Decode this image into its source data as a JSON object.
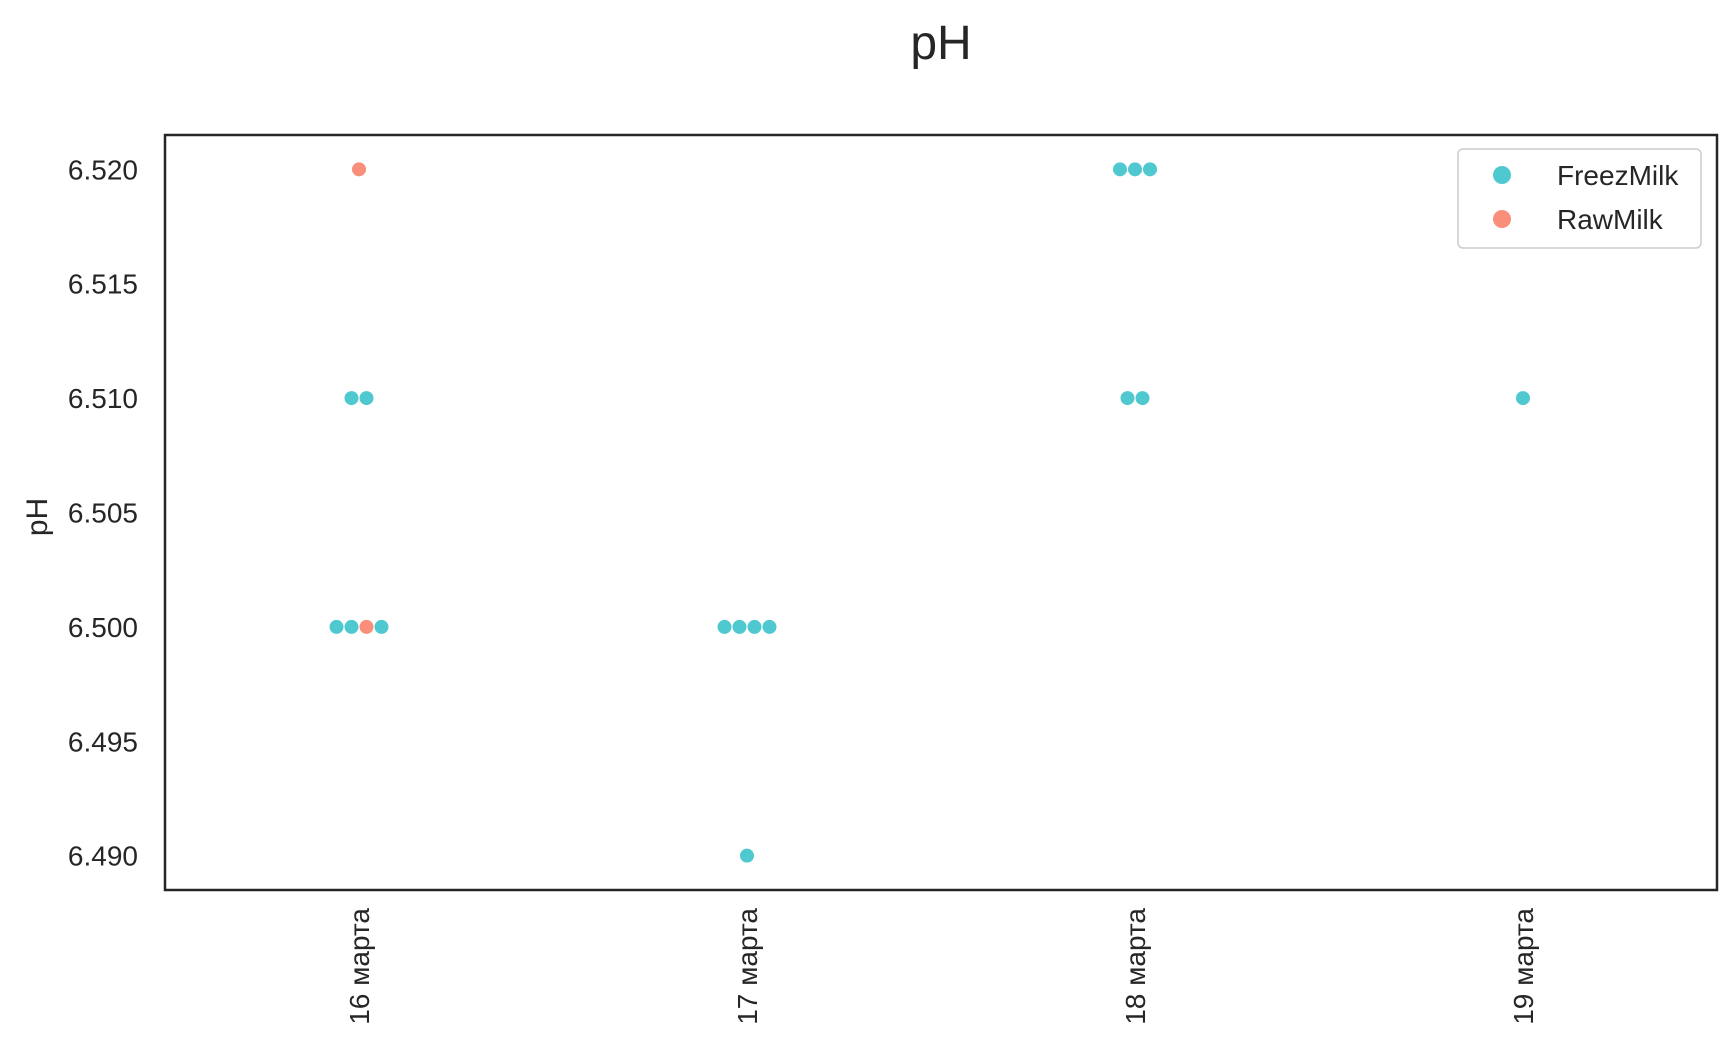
{
  "chart_data": {
    "type": "scatter",
    "title": "pH",
    "xlabel": "",
    "ylabel": "pH",
    "categories": [
      "16 марта",
      "17 марта",
      "18 марта",
      "19 марта"
    ],
    "y_ticks": [
      "6.490",
      "6.495",
      "6.500",
      "6.505",
      "6.510",
      "6.515",
      "6.520"
    ],
    "ylim": [
      6.4885,
      6.5215
    ],
    "grid": false,
    "legend_position": "top-right",
    "series": [
      {
        "name": "FreezMilk",
        "color": "#4fc9cf",
        "points": [
          {
            "x": "16 марта",
            "y": 6.51
          },
          {
            "x": "16 марта",
            "y": 6.51
          },
          {
            "x": "16 марта",
            "y": 6.5
          },
          {
            "x": "16 марта",
            "y": 6.5
          },
          {
            "x": "16 марта",
            "y": 6.5
          },
          {
            "x": "17 марта",
            "y": 6.5
          },
          {
            "x": "17 марта",
            "y": 6.5
          },
          {
            "x": "17 марта",
            "y": 6.5
          },
          {
            "x": "17 марта",
            "y": 6.5
          },
          {
            "x": "17 марта",
            "y": 6.49
          },
          {
            "x": "18 марта",
            "y": 6.52
          },
          {
            "x": "18 марта",
            "y": 6.52
          },
          {
            "x": "18 марта",
            "y": 6.52
          },
          {
            "x": "18 марта",
            "y": 6.51
          },
          {
            "x": "18 марта",
            "y": 6.51
          },
          {
            "x": "19 марта",
            "y": 6.51
          }
        ]
      },
      {
        "name": "RawMilk",
        "color": "#f98f7b",
        "points": [
          {
            "x": "16 марта",
            "y": 6.52
          },
          {
            "x": "16 марта",
            "y": 6.5
          }
        ]
      }
    ]
  }
}
